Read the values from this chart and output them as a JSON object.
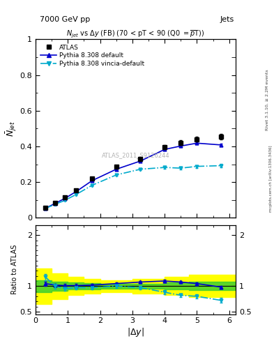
{
  "title_top": "7000 GeV pp",
  "title_right": "Jets",
  "plot_title": "N$_{jet}$ vs $\\Delta y$ (FB) (70 < pT < 90 (Q0 $=\\overline{p}$T))",
  "xlabel": "$|\\Delta y|$",
  "ylabel_main": "$\\bar{N}_{jet}$",
  "ylabel_ratio": "Ratio to ATLAS",
  "watermark": "ATLAS_2011_S9126244",
  "rivet_label": "Rivet 3.1.10, ≥ 2.2M events",
  "arxiv_label": "[arXiv:1306.3436]",
  "mcplots_label": "mcplots.cern.ch",
  "atlas_x": [
    0.3,
    0.6,
    0.9,
    1.25,
    1.75,
    2.5,
    3.25,
    4.0,
    4.5,
    5.0,
    5.75
  ],
  "atlas_y": [
    0.055,
    0.085,
    0.115,
    0.155,
    0.22,
    0.285,
    0.33,
    0.395,
    0.42,
    0.44,
    0.455
  ],
  "atlas_yerr": [
    0.004,
    0.004,
    0.005,
    0.006,
    0.007,
    0.009,
    0.01,
    0.012,
    0.013,
    0.014,
    0.016
  ],
  "py_default_x": [
    0.3,
    0.6,
    0.9,
    1.25,
    1.75,
    2.5,
    3.25,
    4.0,
    4.5,
    5.0,
    5.75
  ],
  "py_default_y": [
    0.053,
    0.08,
    0.108,
    0.146,
    0.208,
    0.272,
    0.318,
    0.383,
    0.402,
    0.418,
    0.408
  ],
  "py_default_yerr": [
    0.002,
    0.002,
    0.003,
    0.003,
    0.004,
    0.005,
    0.006,
    0.007,
    0.007,
    0.008,
    0.009
  ],
  "py_vincia_x": [
    0.3,
    0.6,
    0.9,
    1.25,
    1.75,
    2.5,
    3.25,
    4.0,
    4.5,
    5.0,
    5.75
  ],
  "py_vincia_y": [
    0.052,
    0.075,
    0.097,
    0.13,
    0.182,
    0.24,
    0.272,
    0.282,
    0.278,
    0.288,
    0.292
  ],
  "py_vincia_yerr": [
    0.002,
    0.002,
    0.003,
    0.003,
    0.004,
    0.005,
    0.006,
    0.007,
    0.007,
    0.008,
    0.009
  ],
  "ratio_default_y": [
    1.05,
    1.02,
    1.01,
    1.01,
    1.02,
    1.05,
    1.08,
    1.1,
    1.08,
    1.05,
    0.98
  ],
  "ratio_default_yerr": [
    0.04,
    0.03,
    0.03,
    0.03,
    0.025,
    0.025,
    0.025,
    0.025,
    0.025,
    0.025,
    0.03
  ],
  "ratio_vincia_y": [
    1.18,
    1.0,
    0.95,
    0.97,
    0.97,
    1.0,
    0.97,
    0.88,
    0.82,
    0.8,
    0.72
  ],
  "ratio_vincia_yerr": [
    0.06,
    0.05,
    0.04,
    0.04,
    0.035,
    0.035,
    0.035,
    0.04,
    0.04,
    0.04,
    0.05
  ],
  "green_band_xl": [
    0.0,
    0.5,
    1.0,
    1.5,
    2.0,
    3.0,
    4.0,
    4.75,
    6.2
  ],
  "green_band_ylow": [
    0.88,
    0.91,
    0.93,
    0.94,
    0.95,
    0.95,
    0.93,
    0.92,
    0.92
  ],
  "green_band_yhigh": [
    1.12,
    1.09,
    1.07,
    1.06,
    1.05,
    1.05,
    1.07,
    1.08,
    1.08
  ],
  "yellow_band_xl": [
    0.0,
    0.5,
    1.0,
    1.5,
    2.0,
    3.0,
    4.0,
    4.75,
    6.2
  ],
  "yellow_band_ylow": [
    0.65,
    0.75,
    0.82,
    0.86,
    0.88,
    0.86,
    0.82,
    0.78,
    0.78
  ],
  "yellow_band_yhigh": [
    1.35,
    1.25,
    1.18,
    1.14,
    1.12,
    1.14,
    1.18,
    1.22,
    1.22
  ],
  "color_atlas": "#000000",
  "color_default": "#0000cc",
  "color_vincia": "#00aacc",
  "color_green": "#33cc33",
  "color_yellow": "#ffff00",
  "main_ylim": [
    0.0,
    1.0
  ],
  "main_yticks": [
    0.0,
    0.2,
    0.4,
    0.6,
    0.8,
    1.0
  ],
  "ratio_ylim": [
    0.45,
    2.2
  ],
  "ratio_yticks": [
    0.5,
    1.0,
    2.0
  ],
  "xlim": [
    0.0,
    6.2
  ],
  "xticks": [
    0,
    1,
    2,
    3,
    4,
    5,
    6
  ]
}
